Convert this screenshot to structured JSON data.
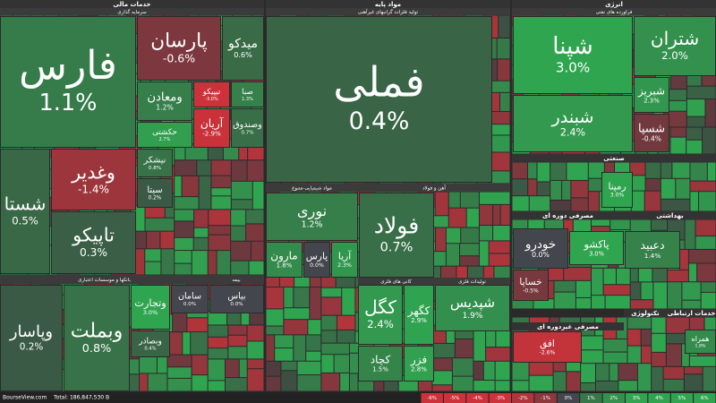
{
  "headers": [
    "خدمات مالی",
    "سرمایه گذاری",
    "بانکها و موسسات اعتباری",
    "بیمه",
    "مواد پایه",
    "تولید فلزات گرانبهای غیرآهنی",
    "مواد شیمیایی-متنوع",
    "آهن و فولاد",
    "کانی های فلزی",
    "تولیدات فلزی",
    "انرژی",
    "فراورده های نفتی",
    "صنعتی",
    "مصرفی دوره ای",
    "بهداشتی",
    "مصرفی غیردوره ای",
    "تکنولوژی",
    "خدمات ارتباطی"
  ],
  "tiles": [
    {
      "name": "فارس",
      "change": "1.1%"
    },
    {
      "name": "پارسان",
      "change": "-0.6%"
    },
    {
      "name": "میدکو",
      "change": "0.6%"
    },
    {
      "name": "ومعادن",
      "change": "1.2%"
    },
    {
      "name": "تیپیکو",
      "change": "-3.0%"
    },
    {
      "name": "صبا",
      "change": "1.3%"
    },
    {
      "name": "حکشتی",
      "change": "2.7%"
    },
    {
      "name": "آریان",
      "change": "-2.9%"
    },
    {
      "name": "وصندوق",
      "change": "0.7%"
    },
    {
      "name": "شستا",
      "change": "0.5%"
    },
    {
      "name": "وغدیر",
      "change": "-1.4%"
    },
    {
      "name": "تاپیکو",
      "change": "0.3%"
    },
    {
      "name": "نیشکر",
      "change": "0.8%"
    },
    {
      "name": "سیتا",
      "change": "0.2%"
    },
    {
      "name": "وپاسار",
      "change": "0.2%"
    },
    {
      "name": "وبملت",
      "change": "0.8%"
    },
    {
      "name": "وتجارت",
      "change": "3.0%"
    },
    {
      "name": "سامان",
      "change": "0.0%"
    },
    {
      "name": "وبصادر",
      "change": "0.4%"
    },
    {
      "name": "بیاس",
      "change": "0.0%"
    },
    {
      "name": "فملی",
      "change": "0.4%"
    },
    {
      "name": "نوری",
      "change": "1.2%"
    },
    {
      "name": "مارون",
      "change": "1.8%"
    },
    {
      "name": "پارس",
      "change": "0.0%"
    },
    {
      "name": "آریا",
      "change": "2.3%"
    },
    {
      "name": "فولاد",
      "change": "0.7%"
    },
    {
      "name": "کگل",
      "change": "2.4%"
    },
    {
      "name": "کگهر",
      "change": "2.9%"
    },
    {
      "name": "کچاد",
      "change": "1.5%"
    },
    {
      "name": "فزر",
      "change": "2.8%"
    },
    {
      "name": "شپدیس",
      "change": "1.9%"
    },
    {
      "name": "شپنا",
      "change": "3.0%"
    },
    {
      "name": "شتران",
      "change": "2.0%"
    },
    {
      "name": "شبندر",
      "change": "2.4%"
    },
    {
      "name": "شبریز",
      "change": "2.3%"
    },
    {
      "name": "شسپا",
      "change": "-0.4%"
    },
    {
      "name": "رمپنا",
      "change": "3.0%"
    },
    {
      "name": "خودرو",
      "change": "0.0%"
    },
    {
      "name": "خساپا",
      "change": "-0.5%"
    },
    {
      "name": "پاکشو",
      "change": "3.0%"
    },
    {
      "name": "دعبید",
      "change": "1.4%"
    },
    {
      "name": "افق",
      "change": "-2.6%"
    },
    {
      "name": "همراه",
      "change": "1.8%"
    }
  ],
  "footer": {
    "site": "BourseView.com",
    "total": "Total: 186,847,530 B"
  },
  "legend": [
    "-6%",
    "-5%",
    "-4%",
    "-3%",
    "-2%",
    "-1%",
    "0%",
    "1%",
    "2%",
    "3%",
    "4%",
    "5%",
    "6%"
  ]
}
